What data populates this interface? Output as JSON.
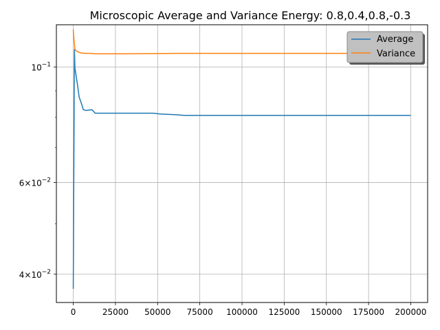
{
  "chart_data": {
    "type": "line",
    "title": "Microscopic Average and Variance Energy: 0.8,0.4,0.8,-0.3",
    "xlabel": "",
    "ylabel": "",
    "xlim": [
      -10000,
      210000
    ],
    "ylim": [
      0.0353,
      0.1205
    ],
    "yscale": "log",
    "grid": "x-major and y-major",
    "legend_position": "top-right",
    "x_ticks": [
      0,
      25000,
      50000,
      75000,
      100000,
      125000,
      150000,
      175000,
      200000
    ],
    "x_tick_labels": [
      "0",
      "25000",
      "50000",
      "75000",
      "100000",
      "125000",
      "150000",
      "175000",
      "200000"
    ],
    "y_major_ticks": [
      0.04,
      0.06,
      0.1
    ],
    "y_tick_labels": [
      {
        "value": 0.1,
        "mantissa": "10",
        "exponent": "−1"
      },
      {
        "value": 0.06,
        "mantissa": "6×10",
        "exponent": "−2"
      },
      {
        "value": 0.04,
        "mantissa": "4×10",
        "exponent": "−2"
      }
    ],
    "y_minor_ticks": [
      0.05,
      0.07,
      0.08,
      0.09
    ],
    "series": [
      {
        "name": "Average",
        "color": "#1f77b4",
        "points": [
          [
            0,
            0.0375
          ],
          [
            400,
            0.068
          ],
          [
            700,
            0.108
          ],
          [
            1000,
            0.0995
          ],
          [
            1500,
            0.097
          ],
          [
            2500,
            0.0925
          ],
          [
            3500,
            0.0875
          ],
          [
            5000,
            0.0848
          ],
          [
            6000,
            0.0828
          ],
          [
            7500,
            0.0825
          ],
          [
            10000,
            0.0827
          ],
          [
            11000,
            0.0828
          ],
          [
            12000,
            0.0822
          ],
          [
            13000,
            0.0815
          ],
          [
            20000,
            0.0815
          ],
          [
            47000,
            0.0815
          ],
          [
            52000,
            0.0812
          ],
          [
            60000,
            0.081
          ],
          [
            66000,
            0.0807
          ],
          [
            200000,
            0.0807
          ]
        ]
      },
      {
        "name": "Variance",
        "color": "#ff7f0e",
        "points": [
          [
            0,
            0.118
          ],
          [
            300,
            0.114
          ],
          [
            600,
            0.1115
          ],
          [
            900,
            0.1085
          ],
          [
            1500,
            0.1075
          ],
          [
            3000,
            0.1068
          ],
          [
            5000,
            0.1063
          ],
          [
            7000,
            0.1062
          ],
          [
            11500,
            0.1062
          ],
          [
            12000,
            0.106
          ],
          [
            30000,
            0.106
          ],
          [
            50000,
            0.1061
          ],
          [
            60000,
            0.1062
          ],
          [
            100000,
            0.1062
          ],
          [
            150000,
            0.1062
          ],
          [
            200000,
            0.1062
          ]
        ]
      }
    ]
  }
}
